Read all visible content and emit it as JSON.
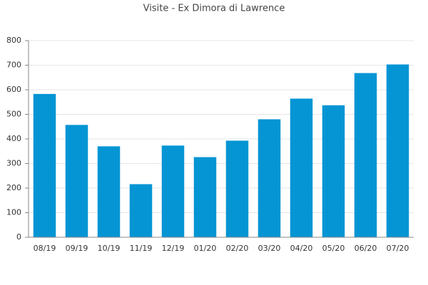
{
  "chart_data": {
    "type": "bar",
    "title": "Visite - Ex Dimora di Lawrence",
    "categories": [
      "08/19",
      "09/19",
      "10/19",
      "11/19",
      "12/19",
      "01/20",
      "02/20",
      "03/20",
      "04/20",
      "05/20",
      "06/20",
      "07/20"
    ],
    "values": [
      583,
      457,
      370,
      216,
      373,
      326,
      393,
      480,
      564,
      537,
      668,
      703
    ],
    "color": "#0595d4",
    "ylim": [
      0,
      800
    ],
    "yticks": [
      0,
      100,
      200,
      300,
      400,
      500,
      600,
      700,
      800
    ],
    "grid": true
  }
}
